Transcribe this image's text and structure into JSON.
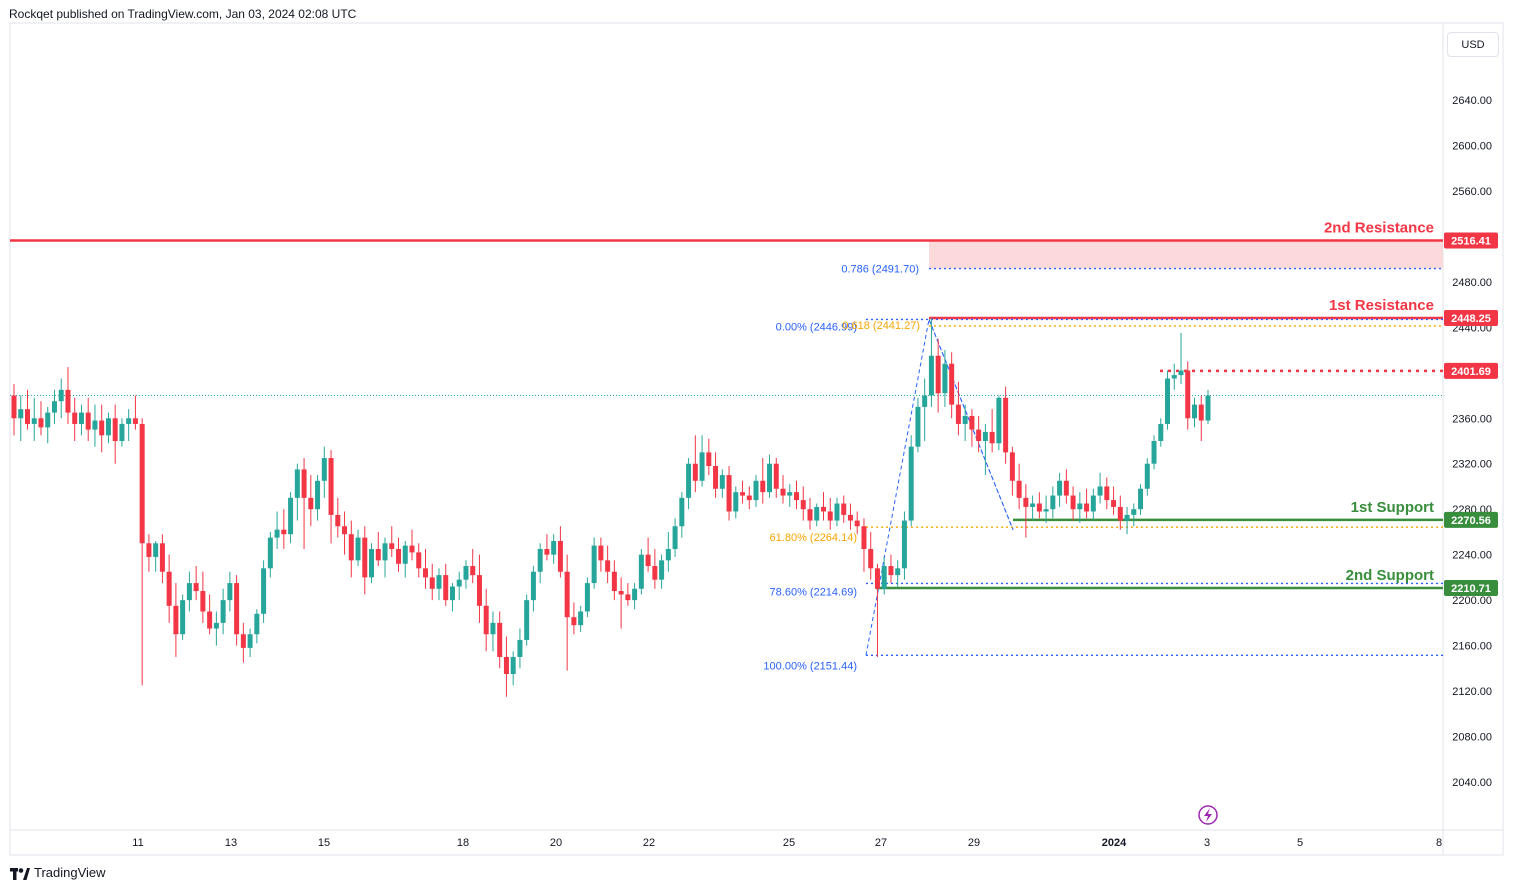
{
  "header": {
    "published": "Rockqet published on TradingView.com, Jan 03, 2024 02:08 UTC"
  },
  "currency_button": "USD",
  "footer": {
    "logo_text": "TradingView"
  },
  "colors": {
    "up": "#26a69a",
    "down": "#f23645",
    "resistance": "#f23645",
    "support": "#388e3c",
    "fib_blue": "#2962ff",
    "fib_orange": "#f7a600",
    "zone": "#fcd3d5"
  },
  "chart_data": {
    "type": "candlestick",
    "ylim": [
      2000,
      2680
    ],
    "y_ticks": [
      "2640.00",
      "2600.00",
      "2560.00",
      "2520.00",
      "2480.00",
      "2440.00",
      "2400.00",
      "2360.00",
      "2320.00",
      "2280.00",
      "2240.00",
      "2200.00",
      "2160.00",
      "2120.00",
      "2080.00",
      "2040.00"
    ],
    "x_ticks": [
      "11",
      "13",
      "15",
      "18",
      "20",
      "22",
      "25",
      "27",
      "29",
      "2024",
      "3",
      "5",
      "8"
    ],
    "candles": [
      [
        2380,
        2390,
        2345,
        2360
      ],
      [
        2360,
        2380,
        2340,
        2368
      ],
      [
        2368,
        2385,
        2350,
        2355
      ],
      [
        2355,
        2378,
        2340,
        2360
      ],
      [
        2360,
        2375,
        2345,
        2352
      ],
      [
        2352,
        2370,
        2338,
        2365
      ],
      [
        2365,
        2385,
        2355,
        2375
      ],
      [
        2375,
        2395,
        2360,
        2385
      ],
      [
        2385,
        2405,
        2355,
        2365
      ],
      [
        2365,
        2378,
        2340,
        2355
      ],
      [
        2355,
        2372,
        2345,
        2365
      ],
      [
        2365,
        2378,
        2340,
        2350
      ],
      [
        2350,
        2372,
        2335,
        2358
      ],
      [
        2358,
        2372,
        2330,
        2345
      ],
      [
        2345,
        2365,
        2338,
        2360
      ],
      [
        2360,
        2372,
        2320,
        2340
      ],
      [
        2340,
        2360,
        2335,
        2355
      ],
      [
        2355,
        2368,
        2340,
        2360
      ],
      [
        2360,
        2380,
        2350,
        2355
      ],
      [
        2355,
        2360,
        2125,
        2250
      ],
      [
        2250,
        2258,
        2225,
        2238
      ],
      [
        2238,
        2252,
        2225,
        2250
      ],
      [
        2250,
        2258,
        2215,
        2225
      ],
      [
        2225,
        2240,
        2180,
        2195
      ],
      [
        2195,
        2215,
        2150,
        2170
      ],
      [
        2170,
        2205,
        2165,
        2200
      ],
      [
        2200,
        2225,
        2190,
        2215
      ],
      [
        2215,
        2230,
        2200,
        2208
      ],
      [
        2208,
        2225,
        2180,
        2190
      ],
      [
        2190,
        2205,
        2170,
        2175
      ],
      [
        2175,
        2190,
        2160,
        2180
      ],
      [
        2180,
        2210,
        2170,
        2200
      ],
      [
        2200,
        2225,
        2190,
        2215
      ],
      [
        2215,
        2222,
        2160,
        2170
      ],
      [
        2170,
        2180,
        2145,
        2158
      ],
      [
        2158,
        2175,
        2150,
        2170
      ],
      [
        2170,
        2192,
        2162,
        2188
      ],
      [
        2188,
        2235,
        2180,
        2228
      ],
      [
        2228,
        2260,
        2220,
        2255
      ],
      [
        2255,
        2278,
        2245,
        2262
      ],
      [
        2262,
        2280,
        2245,
        2258
      ],
      [
        2258,
        2295,
        2250,
        2290
      ],
      [
        2290,
        2320,
        2270,
        2315
      ],
      [
        2315,
        2325,
        2245,
        2290
      ],
      [
        2290,
        2310,
        2265,
        2280
      ],
      [
        2280,
        2310,
        2270,
        2305
      ],
      [
        2305,
        2335,
        2290,
        2325
      ],
      [
        2325,
        2332,
        2250,
        2275
      ],
      [
        2275,
        2290,
        2255,
        2265
      ],
      [
        2265,
        2278,
        2240,
        2258
      ],
      [
        2258,
        2270,
        2220,
        2235
      ],
      [
        2235,
        2262,
        2230,
        2255
      ],
      [
        2255,
        2265,
        2205,
        2220
      ],
      [
        2220,
        2250,
        2215,
        2245
      ],
      [
        2245,
        2260,
        2230,
        2235
      ],
      [
        2235,
        2255,
        2220,
        2250
      ],
      [
        2250,
        2265,
        2238,
        2245
      ],
      [
        2245,
        2255,
        2225,
        2232
      ],
      [
        2232,
        2252,
        2220,
        2248
      ],
      [
        2248,
        2262,
        2235,
        2242
      ],
      [
        2242,
        2250,
        2220,
        2228
      ],
      [
        2228,
        2245,
        2210,
        2220
      ],
      [
        2220,
        2232,
        2200,
        2210
      ],
      [
        2210,
        2228,
        2200,
        2222
      ],
      [
        2222,
        2232,
        2195,
        2200
      ],
      [
        2200,
        2215,
        2190,
        2212
      ],
      [
        2212,
        2225,
        2200,
        2218
      ],
      [
        2218,
        2235,
        2210,
        2230
      ],
      [
        2230,
        2245,
        2215,
        2222
      ],
      [
        2222,
        2240,
        2180,
        2195
      ],
      [
        2195,
        2210,
        2155,
        2170
      ],
      [
        2170,
        2190,
        2155,
        2180
      ],
      [
        2180,
        2190,
        2140,
        2150
      ],
      [
        2150,
        2168,
        2115,
        2135
      ],
      [
        2135,
        2155,
        2125,
        2150
      ],
      [
        2150,
        2175,
        2140,
        2165
      ],
      [
        2165,
        2205,
        2160,
        2200
      ],
      [
        2200,
        2230,
        2190,
        2225
      ],
      [
        2225,
        2250,
        2215,
        2245
      ],
      [
        2245,
        2258,
        2235,
        2240
      ],
      [
        2240,
        2258,
        2232,
        2252
      ],
      [
        2252,
        2265,
        2220,
        2225
      ],
      [
        2225,
        2240,
        2138,
        2185
      ],
      [
        2185,
        2198,
        2170,
        2178
      ],
      [
        2178,
        2195,
        2172,
        2190
      ],
      [
        2190,
        2220,
        2185,
        2215
      ],
      [
        2215,
        2255,
        2210,
        2248
      ],
      [
        2248,
        2255,
        2225,
        2235
      ],
      [
        2235,
        2248,
        2215,
        2225
      ],
      [
        2225,
        2235,
        2200,
        2208
      ],
      [
        2208,
        2220,
        2175,
        2205
      ],
      [
        2205,
        2215,
        2195,
        2200
      ],
      [
        2200,
        2215,
        2192,
        2210
      ],
      [
        2210,
        2245,
        2205,
        2240
      ],
      [
        2240,
        2255,
        2225,
        2230
      ],
      [
        2230,
        2245,
        2210,
        2218
      ],
      [
        2218,
        2240,
        2210,
        2235
      ],
      [
        2235,
        2260,
        2225,
        2245
      ],
      [
        2245,
        2272,
        2238,
        2265
      ],
      [
        2265,
        2295,
        2255,
        2290
      ],
      [
        2290,
        2325,
        2280,
        2320
      ],
      [
        2320,
        2345,
        2295,
        2305
      ],
      [
        2305,
        2345,
        2300,
        2330
      ],
      [
        2330,
        2342,
        2310,
        2318
      ],
      [
        2318,
        2330,
        2290,
        2298
      ],
      [
        2298,
        2315,
        2290,
        2310
      ],
      [
        2310,
        2318,
        2270,
        2278
      ],
      [
        2278,
        2300,
        2272,
        2295
      ],
      [
        2295,
        2305,
        2285,
        2292
      ],
      [
        2292,
        2300,
        2280,
        2288
      ],
      [
        2288,
        2310,
        2282,
        2305
      ],
      [
        2305,
        2325,
        2285,
        2295
      ],
      [
        2295,
        2328,
        2290,
        2320
      ],
      [
        2320,
        2325,
        2290,
        2298
      ],
      [
        2298,
        2310,
        2285,
        2292
      ],
      [
        2292,
        2302,
        2282,
        2295
      ],
      [
        2295,
        2305,
        2280,
        2288
      ],
      [
        2288,
        2300,
        2270,
        2280
      ],
      [
        2280,
        2290,
        2262,
        2270
      ],
      [
        2270,
        2285,
        2265,
        2282
      ],
      [
        2282,
        2295,
        2270,
        2278
      ],
      [
        2278,
        2290,
        2262,
        2270
      ],
      [
        2270,
        2290,
        2265,
        2285
      ],
      [
        2285,
        2292,
        2268,
        2275
      ],
      [
        2275,
        2285,
        2262,
        2270
      ],
      [
        2270,
        2278,
        2258,
        2265
      ],
      [
        2265,
        2272,
        2225,
        2245
      ],
      [
        2245,
        2260,
        2218,
        2228
      ],
      [
        2228,
        2232,
        2150,
        2210
      ],
      [
        2210,
        2238,
        2205,
        2230
      ],
      [
        2230,
        2240,
        2215,
        2222
      ],
      [
        2222,
        2235,
        2212,
        2228
      ],
      [
        2228,
        2278,
        2218,
        2270
      ],
      [
        2270,
        2345,
        2265,
        2335
      ],
      [
        2335,
        2378,
        2330,
        2370
      ],
      [
        2370,
        2395,
        2340,
        2380
      ],
      [
        2380,
        2448,
        2370,
        2415
      ],
      [
        2415,
        2430,
        2365,
        2382
      ],
      [
        2382,
        2420,
        2370,
        2408
      ],
      [
        2408,
        2418,
        2360,
        2372
      ],
      [
        2372,
        2392,
        2345,
        2355
      ],
      [
        2355,
        2372,
        2340,
        2362
      ],
      [
        2362,
        2368,
        2335,
        2350
      ],
      [
        2350,
        2362,
        2330,
        2340
      ],
      [
        2340,
        2355,
        2310,
        2348
      ],
      [
        2348,
        2368,
        2330,
        2338
      ],
      [
        2338,
        2380,
        2332,
        2378
      ],
      [
        2378,
        2388,
        2320,
        2330
      ],
      [
        2330,
        2335,
        2292,
        2305
      ],
      [
        2305,
        2320,
        2280,
        2290
      ],
      [
        2290,
        2302,
        2255,
        2282
      ],
      [
        2282,
        2292,
        2270,
        2285
      ],
      [
        2285,
        2295,
        2272,
        2278
      ],
      [
        2278,
        2292,
        2268,
        2280
      ],
      [
        2280,
        2300,
        2272,
        2292
      ],
      [
        2292,
        2312,
        2282,
        2305
      ],
      [
        2305,
        2315,
        2285,
        2292
      ],
      [
        2292,
        2300,
        2270,
        2280
      ],
      [
        2280,
        2295,
        2268,
        2285
      ],
      [
        2285,
        2298,
        2272,
        2278
      ],
      [
        2278,
        2298,
        2270,
        2292
      ],
      [
        2292,
        2312,
        2285,
        2300
      ],
      [
        2300,
        2308,
        2280,
        2288
      ],
      [
        2288,
        2300,
        2275,
        2282
      ],
      [
        2282,
        2292,
        2262,
        2270
      ],
      [
        2270,
        2282,
        2258,
        2275
      ],
      [
        2275,
        2285,
        2265,
        2280
      ],
      [
        2280,
        2302,
        2275,
        2298
      ],
      [
        2298,
        2325,
        2292,
        2320
      ],
      [
        2320,
        2345,
        2315,
        2340
      ],
      [
        2340,
        2360,
        2335,
        2355
      ],
      [
        2355,
        2402,
        2350,
        2395
      ],
      [
        2395,
        2408,
        2385,
        2398
      ],
      [
        2398,
        2435,
        2390,
        2402
      ],
      [
        2402,
        2410,
        2350,
        2360
      ],
      [
        2360,
        2378,
        2352,
        2372
      ],
      [
        2372,
        2380,
        2340,
        2358
      ],
      [
        2358,
        2385,
        2355,
        2380
      ]
    ],
    "levels": [
      {
        "name": "2nd Resistance",
        "value": 2516.41,
        "label": "2516.41"
      },
      {
        "name": "1st Resistance",
        "value": 2448.25,
        "label": "2448.25"
      },
      {
        "name": "",
        "value": 2401.69,
        "label": "2401.69"
      },
      {
        "name": "1st Support",
        "value": 2270.56,
        "label": "2270.56"
      },
      {
        "name": "2nd Support",
        "value": 2210.71,
        "label": "2210.71"
      }
    ],
    "fib_labels": [
      {
        "text": "0.786 (2491.70)",
        "value": 2491.7
      },
      {
        "text": "0.00% (2446.99)",
        "value": 2446.99
      },
      {
        "text": "0.618 (2441.27)",
        "value": 2441.27
      },
      {
        "text": "61.80% (2264.14)",
        "value": 2264.14
      },
      {
        "text": "78.60% (2214.69)",
        "value": 2214.69
      },
      {
        "text": "100.00% (2151.44)",
        "value": 2151.44
      }
    ],
    "reference_line": 2380
  }
}
